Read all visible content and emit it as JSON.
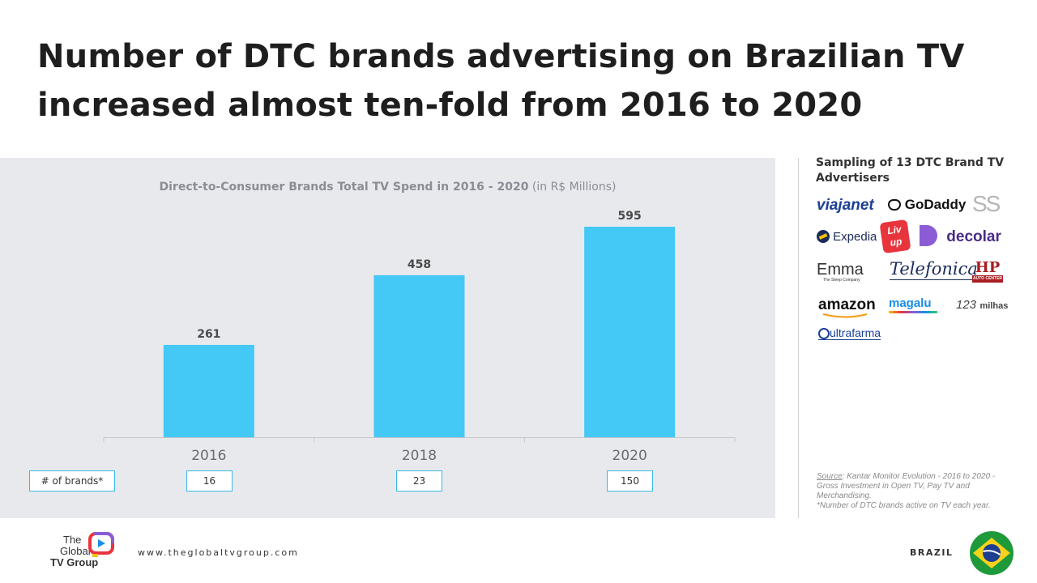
{
  "headline": "Number of DTC brands advertising on Brazilian TV increased almost ten-fold from 2016 to 2020",
  "chart_data": {
    "type": "bar",
    "title": "Direct-to-Consumer Brands Total TV Spend in 2016 - 2020",
    "title_units": "(in R$ Millions)",
    "categories": [
      "2016",
      "2018",
      "2020"
    ],
    "values": [
      261,
      458,
      595
    ],
    "ylim": [
      0,
      650
    ],
    "grid": false,
    "legend": "none",
    "bar_color": "#44c8f5",
    "brands_table": {
      "header": "# of brands*",
      "values": [
        "16",
        "23",
        "150"
      ]
    }
  },
  "sidebar": {
    "title": "Sampling of 13 DTC Brand TV Advertisers",
    "logos": [
      {
        "name": "viajanet",
        "text": "viajanet",
        "color": "#1b3f94"
      },
      {
        "name": "godaddy",
        "text": "GoDaddy",
        "color": "#111111"
      },
      {
        "name": "ss",
        "text": "SS",
        "color": "#b5b5b5"
      },
      {
        "name": "expedia",
        "text": "Expedia",
        "color": "#1b2b5a"
      },
      {
        "name": "livup",
        "text": "Liv up",
        "color": "#e8343c"
      },
      {
        "name": "decolar",
        "text": "decolar",
        "color": "#4a2c85"
      },
      {
        "name": "emma",
        "text": "Emma",
        "sub": "The Sleep Company",
        "color": "#333333"
      },
      {
        "name": "telefonica",
        "text": "Telefonica",
        "color": "#1b2b5a"
      },
      {
        "name": "hp-auto-center",
        "text": "HP",
        "sub": "AUTO CENTER",
        "color": "#a81e22"
      },
      {
        "name": "amazon",
        "text": "amazon",
        "color": "#111111"
      },
      {
        "name": "magalu",
        "text": "magalu",
        "color": "#1a8ee6"
      },
      {
        "name": "123milhas",
        "text": "123",
        "sub": "milhas",
        "color": "#444444"
      },
      {
        "name": "ultrafarma",
        "text": "ultrafarma",
        "color": "#1b3f94"
      }
    ],
    "source_label": "Source",
    "source_text": ": Kantar Monitor Evolution - 2016 to 2020 - Gross Investment in Open TV, Pay TV and Merchandising.",
    "footnote": "*Number of DTC brands active on TV each year."
  },
  "footer": {
    "company_line1": "The",
    "company_line2": "Global",
    "company_line3": "TV Group",
    "url": "www.theglobaltvgroup.com",
    "country": "BRAZIL"
  }
}
